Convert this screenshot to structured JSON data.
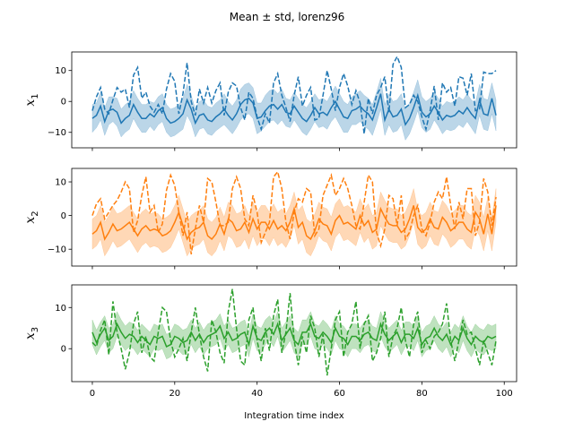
{
  "figure": {
    "title": "Mean ± std, lorenz96",
    "xlabel": "Integration time index"
  },
  "chart_data": [
    {
      "type": "line",
      "ylabel_var": "x",
      "ylabel_sub": "1",
      "color": "#1f77b4",
      "xlim": [
        -5,
        103
      ],
      "ylim": [
        -15,
        16
      ],
      "xticks": [
        0,
        20,
        40,
        60,
        80,
        100
      ],
      "yticks": [
        -10,
        0,
        10
      ],
      "x_start": 0,
      "x_end": 98,
      "mean_line": "solid",
      "true_line": "dashed",
      "mean": [
        -5.5,
        -4.5,
        -1.5,
        -6.5,
        -3,
        -2.5,
        -3.5,
        -7,
        -5.5,
        -4.5,
        -1,
        -3.5,
        -5.5,
        -5.5,
        -4,
        -5,
        -3,
        -2,
        -5.5,
        -7,
        -6.5,
        -5.5,
        -4,
        0.5,
        -2.5,
        -7,
        -4.5,
        -4,
        -6,
        -6.5,
        -5,
        -4,
        -2.5,
        -4.5,
        -6,
        -4,
        -1,
        0.5,
        1,
        -0.5,
        -5.5,
        -5,
        -3,
        -1.5,
        -1,
        -2.5,
        -1,
        -3.5,
        -4,
        -1.5,
        -3.5,
        -5.5,
        -6.5,
        -4.5,
        -2,
        -4,
        -3.5,
        -4.5,
        -2,
        0,
        -2.5,
        -5,
        -5.5,
        -3,
        -2.5,
        -1.5,
        -3,
        -4,
        -6,
        -2,
        2.5,
        -6,
        -2.5,
        -5,
        -4.5,
        -2.5,
        -7.5,
        -5.5,
        -2,
        2,
        -3.5,
        -5,
        -4,
        -1.5,
        -3.5,
        -6,
        -4.5,
        -5,
        -4.5,
        -3,
        -4,
        -2,
        -4,
        -5.5,
        0.5,
        -4,
        -4.5,
        1,
        -4.5
      ],
      "std": [
        4.5,
        4,
        4.5,
        4.5,
        4.5,
        4,
        4.5,
        4.5,
        4.5,
        4.5,
        4.5,
        4.5,
        4.5,
        4.5,
        4,
        4.5,
        4.5,
        4.5,
        4.5,
        4.5,
        4.5,
        4.5,
        5,
        5,
        4.5,
        4.5,
        4.5,
        4.5,
        4.5,
        4.5,
        4.5,
        4.5,
        5,
        4.5,
        4.5,
        4.5,
        5,
        5,
        5,
        5,
        5,
        4.5,
        5,
        5,
        5,
        5,
        5,
        4.5,
        4.5,
        4.5,
        4.5,
        4.5,
        4.5,
        4.5,
        4.5,
        4.5,
        4.5,
        4.5,
        4.5,
        5,
        5,
        5,
        4.5,
        4.5,
        5,
        5,
        5,
        5,
        5,
        5,
        5,
        5,
        5,
        5,
        5,
        5,
        5,
        5,
        5,
        5,
        5,
        5,
        5,
        4.5,
        4.5,
        4.5,
        4.5,
        4.5,
        4.5,
        4.5,
        4.5,
        4.5,
        4.5,
        5,
        5,
        5,
        5,
        5,
        5
      ],
      "truth": [
        -3,
        1.5,
        4.5,
        -2.5,
        -4,
        0.5,
        4.5,
        3,
        4,
        -2,
        8.5,
        11,
        1,
        3,
        -1.5,
        -3.5,
        -1,
        -4,
        4,
        9,
        6.5,
        -4,
        2.5,
        12.5,
        0,
        -4.5,
        4,
        -0.5,
        4.5,
        -0.5,
        3.5,
        6,
        -4.5,
        3,
        6,
        5,
        -2,
        -6,
        3,
        1,
        -5,
        -9,
        -4,
        -7,
        6,
        9,
        2,
        -2,
        -6.5,
        2,
        8,
        -1.5,
        2,
        4.5,
        -6,
        -5.5,
        2,
        10,
        4,
        -3,
        4.5,
        9,
        5,
        -1,
        3.5,
        -0.5,
        -10.5,
        1,
        -4,
        2,
        4.5,
        8,
        -3.5,
        12,
        14.5,
        11,
        -2,
        -1,
        2,
        0,
        -5,
        -9,
        -3,
        5,
        -6,
        6,
        3,
        4.5,
        -1.5,
        8,
        7.5,
        2,
        9,
        -3,
        -2.5,
        9.5,
        9,
        9,
        10
      ]
    },
    {
      "type": "line",
      "ylabel_var": "x",
      "ylabel_sub": "2",
      "color": "#ff7f0e",
      "xlim": [
        -5,
        103
      ],
      "ylim": [
        -15,
        14
      ],
      "xticks": [
        0,
        20,
        40,
        60,
        80,
        100
      ],
      "yticks": [
        -10,
        0,
        10
      ],
      "x_start": 0,
      "x_end": 98,
      "mean_line": "solid",
      "true_line": "dashed",
      "mean": [
        -5.5,
        -4.5,
        -2,
        -7,
        -5,
        -2.5,
        -4.5,
        -4,
        -3,
        -2,
        -4,
        -6,
        -4,
        -3,
        -4.5,
        -4,
        -4.5,
        -6,
        -5.5,
        -4.5,
        -2,
        1,
        -3,
        -7,
        -5,
        -4,
        -3.5,
        -2,
        -6,
        -7,
        -5.5,
        -2.5,
        -5.5,
        -1,
        -2,
        -4.5,
        -4,
        -2,
        -5,
        -1,
        -4,
        -2,
        -2,
        -4,
        -1.5,
        -4,
        -3,
        -4.5,
        -2,
        2,
        -3.5,
        -2,
        -6,
        -7,
        -4.5,
        -1,
        -2.5,
        -3,
        -5.5,
        -1.5,
        0,
        -2.5,
        -2,
        -3,
        -4,
        0,
        -3,
        -1.5,
        -5,
        -4,
        2,
        -0.5,
        -2.5,
        -3,
        -3,
        -5,
        -4,
        -1,
        3,
        -3.5,
        -5,
        -4,
        -1,
        -3.5,
        -4,
        -0.5,
        -2,
        -4.5,
        -3.5,
        -2,
        -2,
        -4,
        -5,
        1,
        -1,
        -5.5,
        0.5,
        -5.5,
        3
      ],
      "std": [
        4.5,
        4.5,
        5,
        5,
        5,
        5,
        5,
        5,
        5,
        5,
        5,
        5,
        5,
        5,
        5,
        5,
        5,
        5,
        5,
        5,
        5,
        5,
        5,
        5,
        5,
        5,
        5,
        5,
        5,
        5,
        5,
        5,
        5,
        5,
        5,
        5,
        5,
        5,
        5,
        5,
        5,
        5,
        5,
        5,
        5,
        5,
        5,
        5,
        5,
        5,
        5,
        5,
        5,
        5,
        5,
        5,
        5,
        5,
        5,
        5,
        5,
        5,
        5,
        5,
        5,
        5,
        5,
        5,
        5,
        5,
        5,
        5,
        5,
        5,
        5,
        5,
        5,
        5,
        5,
        5,
        5,
        5,
        5,
        5,
        5,
        5,
        5,
        5,
        5,
        5,
        5,
        5,
        5,
        5,
        5,
        5,
        5,
        5,
        5
      ],
      "truth": [
        0,
        3.5,
        5,
        -1,
        1,
        3,
        4.5,
        7,
        10,
        8,
        -5,
        -1.5,
        6,
        11.5,
        1,
        3,
        -5,
        -2.5,
        7.5,
        12,
        9,
        1,
        -6,
        1,
        -11.5,
        -4,
        3,
        -2,
        11,
        10,
        4,
        -3,
        -3,
        -2,
        8,
        11.5,
        8,
        -1,
        -3,
        6,
        1,
        -8,
        -5,
        -2,
        11.5,
        13,
        8,
        -2,
        -7,
        1,
        5,
        4,
        8,
        7,
        -6,
        -4,
        6,
        9,
        12,
        6,
        8,
        11,
        8,
        3,
        -3,
        -4,
        4,
        12,
        10,
        -5,
        -9,
        -4,
        6,
        5,
        -3,
        6,
        -7,
        -5,
        0,
        3,
        -4,
        -6,
        -2,
        4,
        7,
        5,
        11.5,
        3,
        -4,
        4,
        -1,
        8,
        8,
        -6,
        -2,
        11,
        7,
        -3,
        5.5
      ]
    },
    {
      "type": "line",
      "ylabel_var": "x",
      "ylabel_sub": "3",
      "color": "#2ca02c",
      "xlim": [
        -5,
        103
      ],
      "ylim": [
        -8,
        15.5
      ],
      "xticks": [
        0,
        20,
        40,
        60,
        80,
        100
      ],
      "yticks": [
        0,
        10
      ],
      "x_start": 0,
      "x_end": 98,
      "mean_line": "solid",
      "true_line": "dashed",
      "mean": [
        4,
        1.5,
        3.5,
        5,
        2,
        3,
        6,
        4,
        2.5,
        3.5,
        3,
        1.5,
        3,
        2,
        1,
        3,
        2.5,
        3,
        0.5,
        1,
        3,
        2.5,
        1.5,
        2,
        4,
        2,
        3.5,
        1.5,
        3,
        3.5,
        4,
        5.5,
        2.5,
        4,
        2,
        2.5,
        3.5,
        4,
        1,
        5.5,
        2.5,
        2,
        4,
        5,
        3.5,
        6,
        2,
        3.5,
        5,
        2,
        1,
        4,
        4,
        6,
        3,
        2.5,
        4,
        3,
        1.5,
        5,
        3,
        2.5,
        1,
        3,
        3,
        2,
        3.5,
        4,
        2.5,
        2,
        6,
        3.5,
        2,
        3,
        4,
        1.5,
        3.5,
        3.5,
        2.5,
        5,
        1,
        2.5,
        3,
        5,
        3,
        2,
        3.5,
        1,
        3,
        2,
        5,
        2.5,
        1,
        3,
        2,
        1.5,
        3,
        2.5,
        3
      ],
      "std": [
        3,
        3,
        3,
        3,
        3,
        3,
        3,
        3,
        3,
        3,
        3,
        3,
        3,
        3,
        3,
        3,
        3,
        3,
        3,
        3,
        3,
        3,
        3,
        3,
        3,
        3,
        3,
        3,
        3,
        3,
        3,
        3,
        3,
        3,
        3,
        3,
        3,
        3,
        3,
        3,
        3,
        3,
        3,
        3,
        3,
        3,
        3,
        3,
        3,
        3,
        3,
        3,
        3,
        3,
        3,
        3,
        3,
        3,
        3,
        3,
        3,
        3,
        3,
        3,
        3,
        3,
        3,
        3,
        3,
        3,
        3,
        3,
        3,
        3,
        3,
        3,
        3,
        3,
        3,
        3,
        3,
        3,
        3,
        3,
        3,
        3,
        3,
        3,
        3,
        3,
        3,
        3,
        3,
        3,
        3,
        3,
        3,
        3,
        3
      ],
      "truth": [
        1.5,
        0.5,
        4.5,
        7,
        -1.5,
        11.5,
        4,
        0,
        -5,
        -1,
        6,
        9,
        -1,
        3,
        -2,
        -3,
        4,
        10,
        9,
        2,
        -2,
        0,
        2.5,
        -3,
        4,
        10,
        3.5,
        -2,
        -5.5,
        7,
        4,
        -1,
        -3.5,
        9,
        14.5,
        5,
        -3,
        -4,
        7,
        10,
        2,
        -3,
        5,
        -0.5,
        8,
        12,
        -1,
        4,
        13.5,
        2,
        -4,
        3,
        -1,
        8,
        5,
        -2,
        3.5,
        -6.5,
        0,
        7,
        9,
        -2,
        4,
        6,
        11.5,
        0,
        6,
        8,
        -3,
        -1,
        2.5,
        9,
        -2,
        3,
        5,
        10,
        2,
        -2,
        6,
        9,
        -1,
        2,
        0,
        3,
        4,
        6,
        11,
        2,
        -3,
        2,
        7,
        3.5,
        4,
        0,
        -4,
        2,
        -1,
        -4,
        2
      ]
    }
  ]
}
